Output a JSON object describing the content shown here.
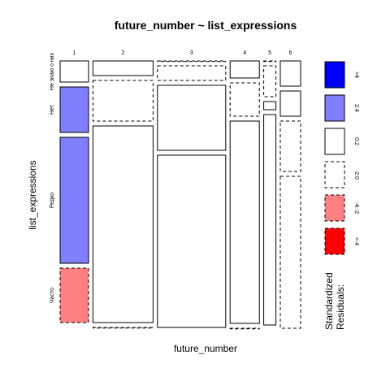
{
  "chart_data": {
    "type": "mosaic",
    "title": "future_number ~ list_expressions",
    "xlabel": "future_number",
    "ylabel": "list_expressions",
    "x_categories": [
      "1",
      "2",
      "3",
      "4",
      "5",
      "6"
    ],
    "y_categories": [
      "Не знаю о них",
      "Нет",
      "Редко",
      "Часто"
    ],
    "column_widths": [
      35,
      74,
      84,
      36,
      15,
      25
    ],
    "cells": [
      {
        "column": "1",
        "heights": [
          26,
          56,
          155,
          67
        ],
        "residual_class": [
          "0:2",
          "2:4",
          "2:4",
          "-4:-2"
        ]
      },
      {
        "column": "2",
        "heights": [
          18,
          50,
          242,
          0
        ],
        "residual_class": [
          "0:2",
          "-2:0",
          "0:2",
          "-2:0"
        ]
      },
      {
        "column": "3",
        "heights": [
          0,
          18,
          80,
          212
        ],
        "residual_class": [
          "-2:0",
          "-2:0",
          "0:2",
          "0:2"
        ]
      },
      {
        "column": "4",
        "heights": [
          21,
          41,
          249,
          0
        ],
        "residual_class": [
          "0:2",
          "-2:0",
          "0:2",
          "-2:0"
        ]
      },
      {
        "column": "5",
        "heights": [
          0,
          38,
          10,
          259
        ],
        "residual_class": [
          "-2:0",
          "-2:0",
          "0:2",
          "0:2"
        ]
      },
      {
        "column": "6",
        "heights": [
          31,
          31,
          62,
          187
        ],
        "residual_class": [
          "0:2",
          "0:2",
          "-2:0",
          "-2:0"
        ]
      }
    ],
    "legend": {
      "title_line1": "Standardized",
      "title_line2": "Residuals:",
      "items": [
        {
          "label": ">4",
          "fill": "#0000ff",
          "dashed": false
        },
        {
          "label": "2:4",
          "fill": "#8080ff",
          "dashed": false
        },
        {
          "label": "0:2",
          "fill": "#ffffff",
          "dashed": false
        },
        {
          "label": "-2:0",
          "fill": "#ffffff",
          "dashed": true
        },
        {
          "label": "-4:-2",
          "fill": "#ff8080",
          "dashed": true
        },
        {
          "label": "<-4",
          "fill": "#ff0000",
          "dashed": true
        }
      ]
    }
  }
}
